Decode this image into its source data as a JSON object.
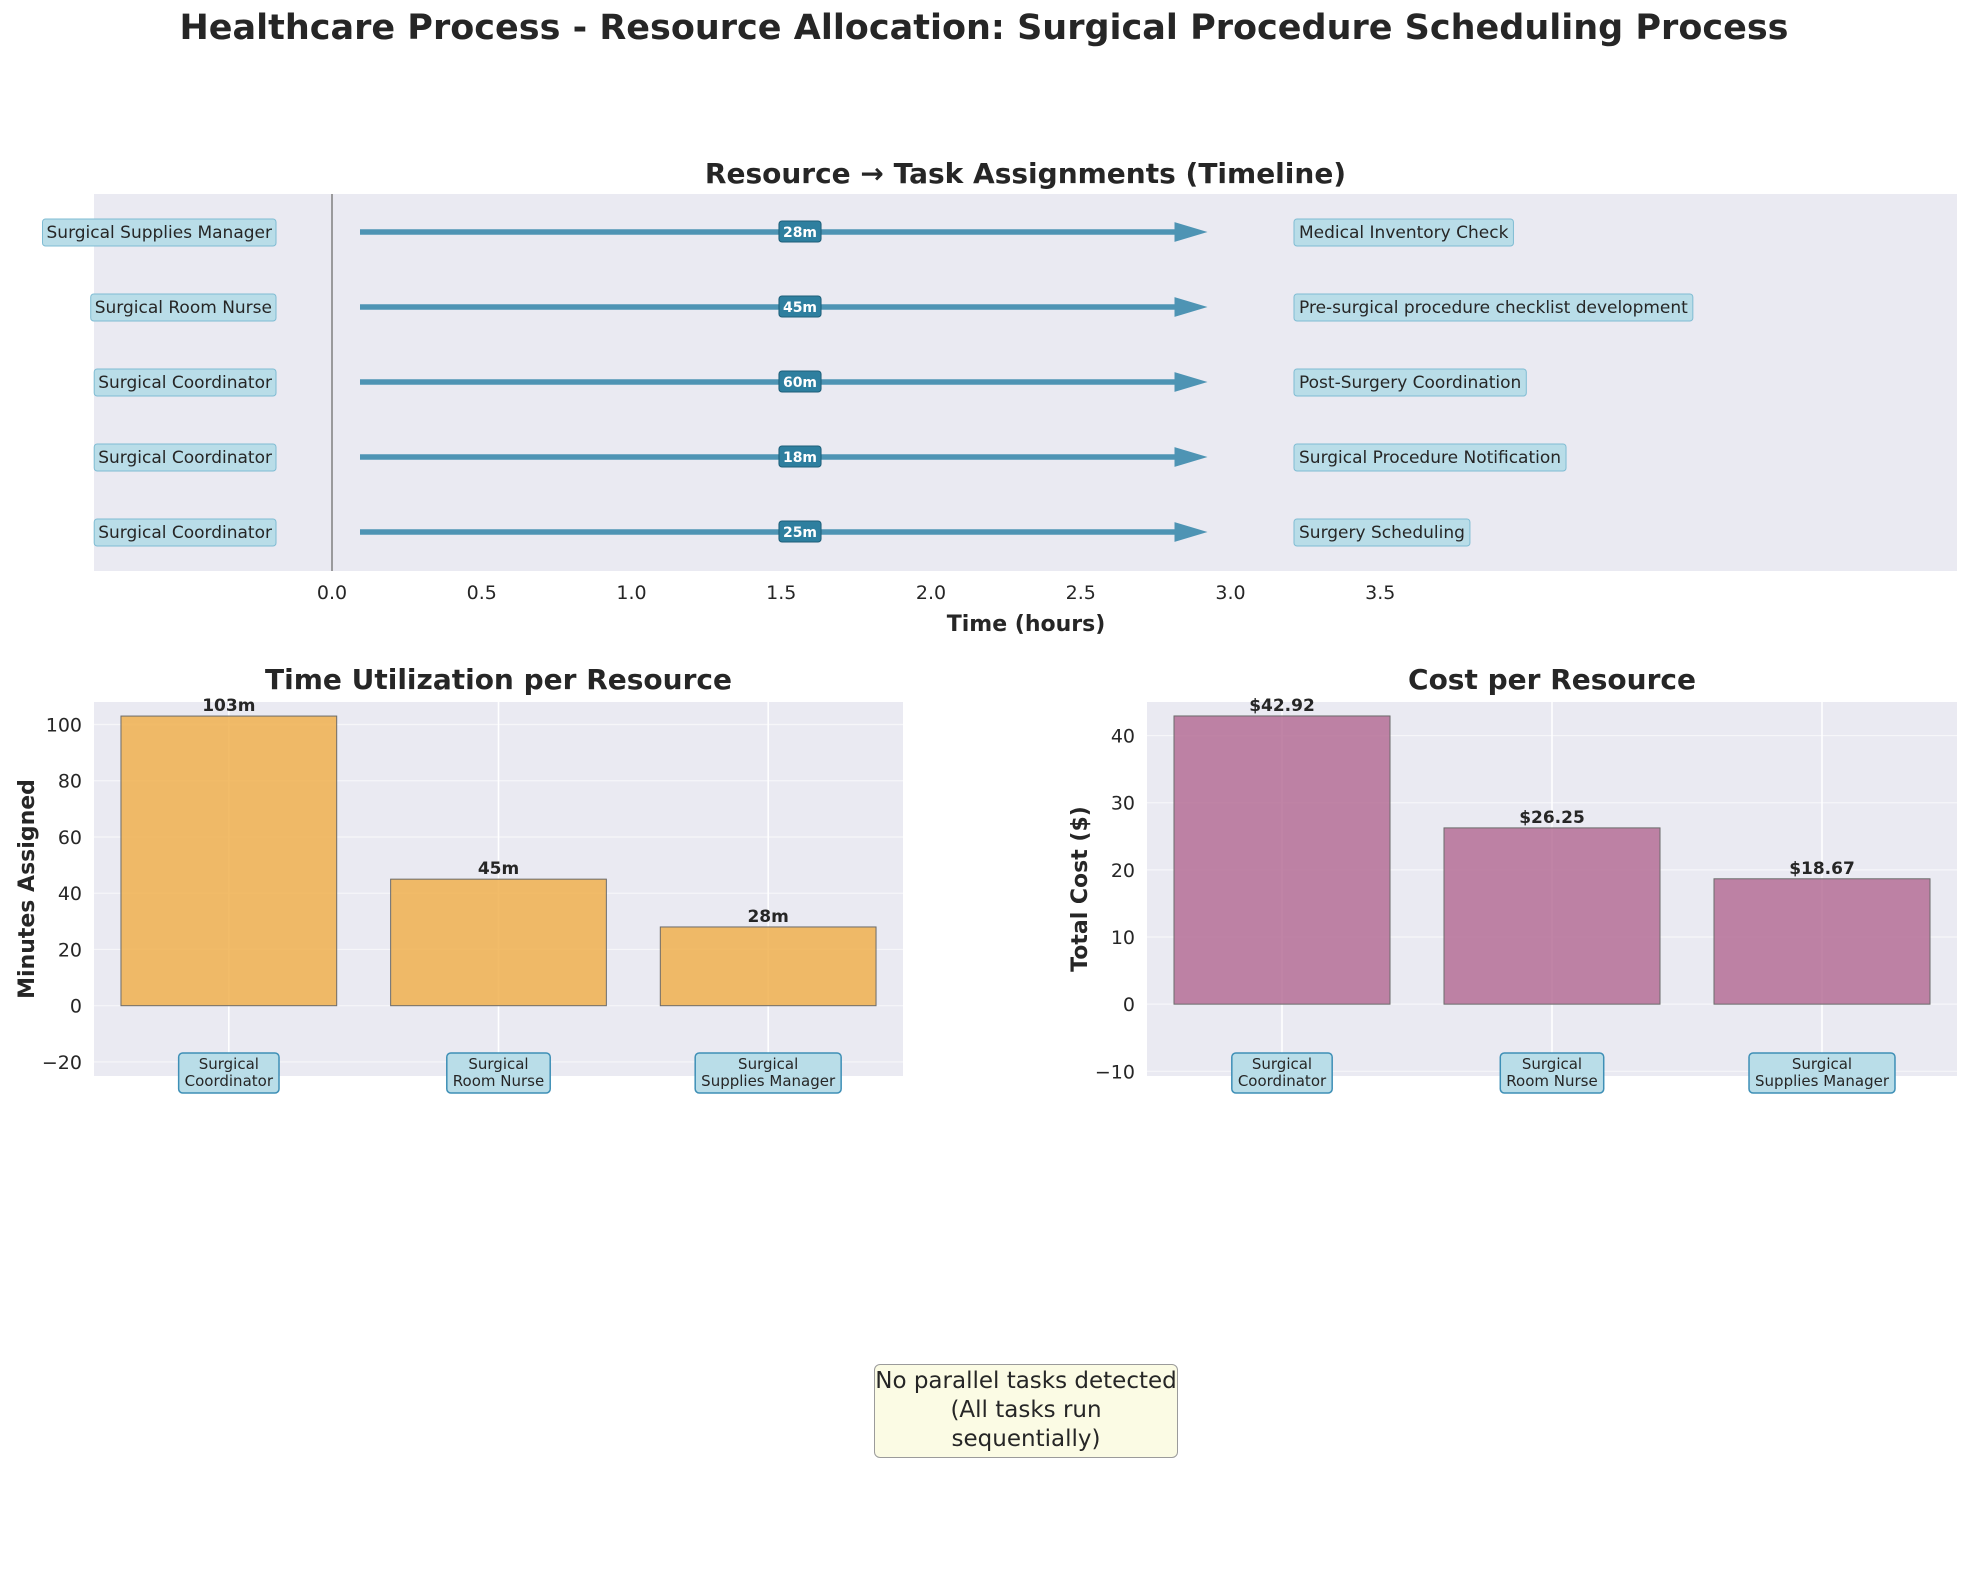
{
  "title": "Healthcare Process - Resource Allocation: Surgical Procedure Scheduling Process",
  "note": {
    "line1": "No parallel tasks detected",
    "line2": "(All tasks run sequentially)"
  },
  "colors": {
    "plot_bg": "#eaeaf2",
    "arrow": "#4e94b4",
    "label_box": "#b9dde8",
    "label_border": "#7fbcd3",
    "time_bar": "#f0b04f",
    "cost_bar": "#b56e96",
    "duration_box": "#2e7f9f"
  },
  "chart_data": [
    {
      "type": "timeline",
      "title": "Resource → Task Assignments (Timeline)",
      "xlabel": "Time (hours)",
      "xticks": [
        "0.0",
        "0.5",
        "1.0",
        "1.5",
        "2.0",
        "2.5",
        "3.0",
        "3.5"
      ],
      "rows": [
        {
          "resource": "Surgical Supplies Manager",
          "task": "Medical Inventory Check",
          "duration": "28m"
        },
        {
          "resource": "Surgical Room Nurse",
          "task": "Pre-surgical procedure checklist development",
          "duration": "45m"
        },
        {
          "resource": "Surgical Coordinator",
          "task": "Post-Surgery Coordination",
          "duration": "60m"
        },
        {
          "resource": "Surgical Coordinator",
          "task": "Surgical Procedure Notification",
          "duration": "18m"
        },
        {
          "resource": "Surgical Coordinator",
          "task": "Surgery Scheduling",
          "duration": "25m"
        }
      ]
    },
    {
      "type": "bar",
      "title": "Time Utilization per Resource",
      "ylabel": "Minutes Assigned",
      "categories": [
        [
          "Surgical",
          "Coordinator"
        ],
        [
          "Surgical",
          "Room Nurse"
        ],
        [
          "Surgical",
          "Supplies Manager"
        ]
      ],
      "values": [
        103,
        45,
        28
      ],
      "labels": [
        "103m",
        "45m",
        "28m"
      ],
      "ylim": [
        -25,
        108
      ],
      "yticks": [
        -20,
        0,
        20,
        40,
        60,
        80,
        100
      ],
      "ytick_labels": [
        "−20",
        "0",
        "20",
        "40",
        "60",
        "80",
        "100"
      ],
      "grid": true
    },
    {
      "type": "bar",
      "title": "Cost per Resource",
      "ylabel": "Total Cost ($)",
      "categories": [
        [
          "Surgical",
          "Coordinator"
        ],
        [
          "Surgical",
          "Room Nurse"
        ],
        [
          "Surgical",
          "Supplies Manager"
        ]
      ],
      "values": [
        42.92,
        26.25,
        18.67
      ],
      "labels": [
        "$42.92",
        "$26.25",
        "$18.67"
      ],
      "ylim": [
        -10.7,
        45
      ],
      "yticks": [
        -10,
        0,
        10,
        20,
        30,
        40
      ],
      "ytick_labels": [
        "−10",
        "0",
        "10",
        "20",
        "30",
        "40"
      ],
      "grid": true
    }
  ]
}
